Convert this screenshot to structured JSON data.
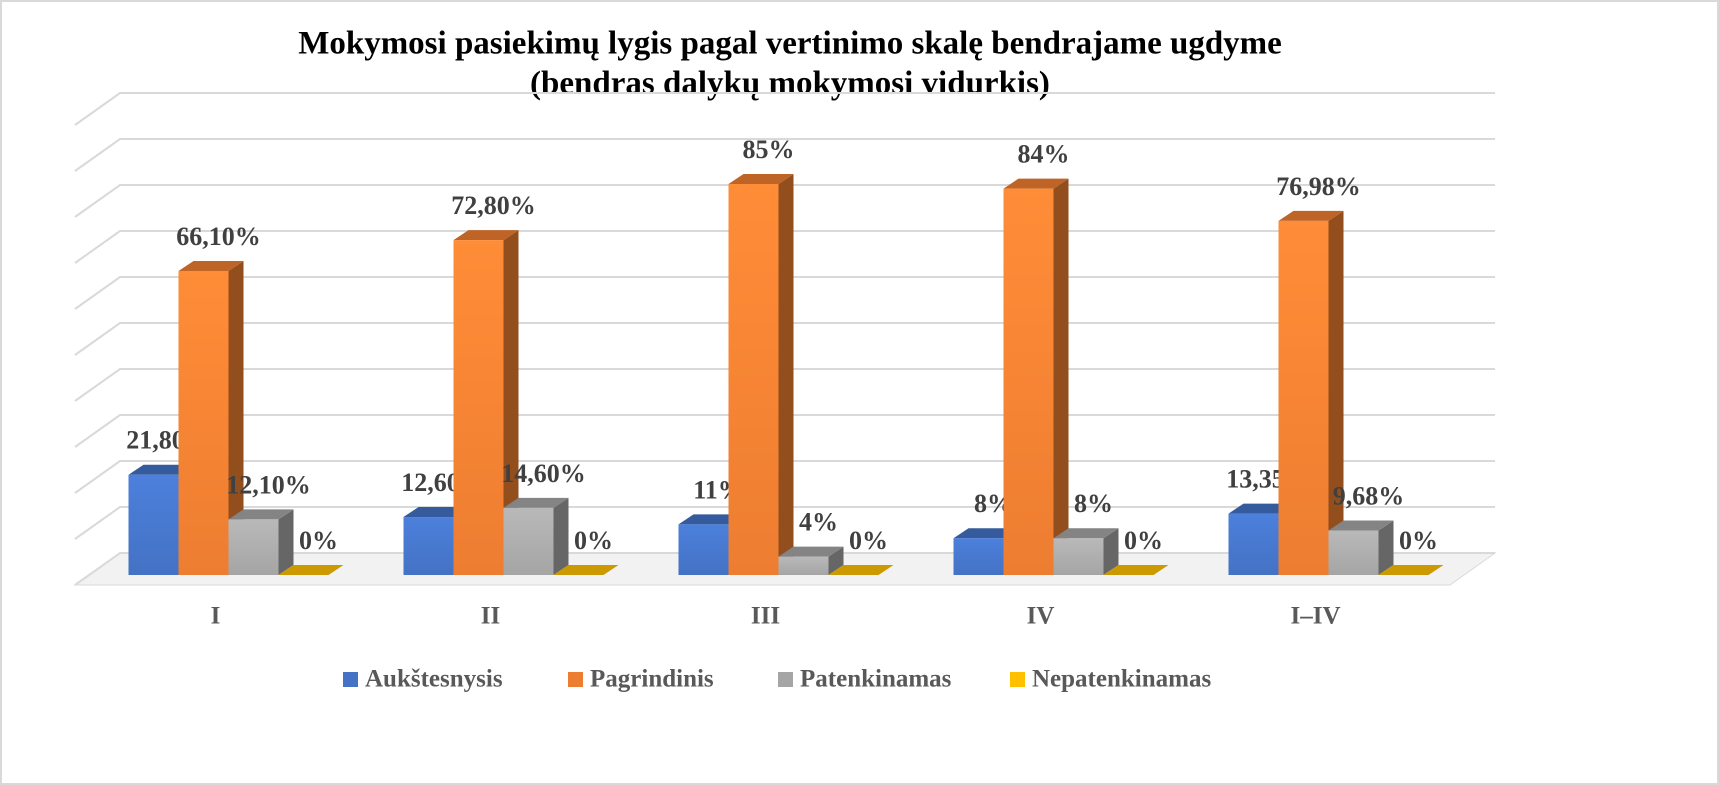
{
  "chart_data": {
    "type": "bar3d",
    "title": "Mokymosi pasiekimų lygis pagal vertinimo skalę bendrajame ugdyme",
    "subtitle": "(bendras dalykų mokymosi vidurkis)",
    "categories": [
      "I",
      "II",
      "III",
      "IV",
      "I–IV"
    ],
    "series": [
      {
        "name": "Aukštesnysis",
        "color": "#4472c4",
        "values": [
          21.8,
          12.6,
          11,
          8,
          13.35
        ],
        "value_labels": [
          "21,80%",
          "12,60%",
          "11%",
          "8%",
          "13,35%"
        ]
      },
      {
        "name": "Pagrindinis",
        "color": "#ed7d31",
        "values": [
          66.1,
          72.8,
          85,
          84,
          76.98
        ],
        "value_labels": [
          "66,10%",
          "72,80%",
          "85%",
          "84%",
          "76,98%"
        ]
      },
      {
        "name": "Patenkinamas",
        "color": "#a5a5a5",
        "values": [
          12.1,
          14.6,
          4,
          8,
          9.68
        ],
        "value_labels": [
          "12,10%",
          "14,60%",
          "4%",
          "8%",
          "9,68%"
        ]
      },
      {
        "name": "Nepatenkinamas",
        "color": "#ffc000",
        "values": [
          0,
          0,
          0,
          0,
          0
        ],
        "value_labels": [
          "0%",
          "0%",
          "0%",
          "0%",
          "0%"
        ]
      }
    ],
    "ylim": [
      0,
      100
    ],
    "yticks": [
      0,
      10,
      20,
      30,
      40,
      50,
      60,
      70,
      80,
      90,
      100
    ],
    "grid": true,
    "legend": "bottom"
  }
}
